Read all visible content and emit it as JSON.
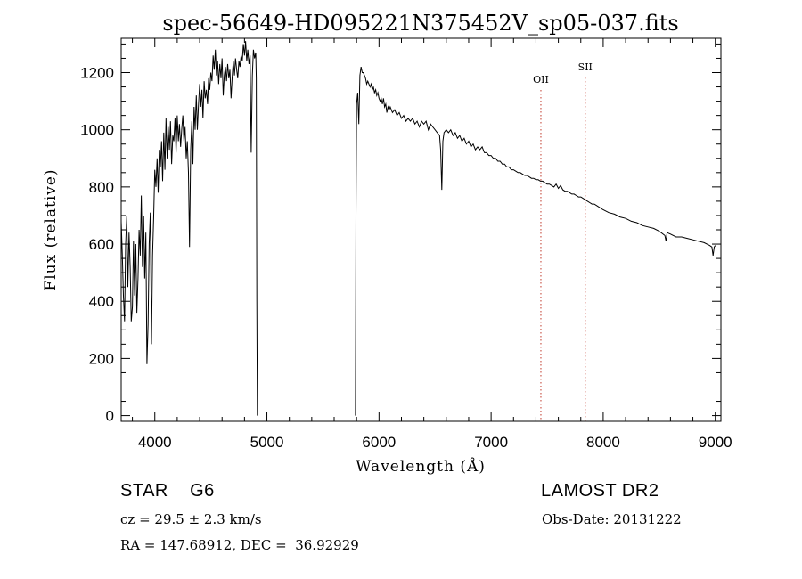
{
  "chart_data": {
    "type": "line",
    "title": "spec-56649-HD095221N375452V_sp05-037.fits",
    "xlabel": "Wavelength (Å)",
    "ylabel": "Flux (relative)",
    "xlim": [
      3700,
      9050
    ],
    "ylim": [
      -20,
      1320
    ],
    "xticks": [
      "4000",
      "5000",
      "6000",
      "7000",
      "8000",
      "9000"
    ],
    "yticks": [
      "0",
      "200",
      "400",
      "600",
      "800",
      "1000",
      "1200"
    ],
    "grid": false,
    "series": [
      {
        "segments": [
          [
            [
              3700,
              680
            ],
            [
              3710,
              560
            ],
            [
              3720,
              420
            ],
            [
              3730,
              330
            ],
            [
              3740,
              600
            ],
            [
              3750,
              700
            ],
            [
              3760,
              450
            ],
            [
              3770,
              640
            ],
            [
              3780,
              520
            ],
            [
              3790,
              330
            ],
            [
              3800,
              380
            ],
            [
              3810,
              610
            ],
            [
              3820,
              420
            ],
            [
              3830,
              600
            ],
            [
              3840,
              360
            ],
            [
              3850,
              480
            ],
            [
              3860,
              650
            ],
            [
              3870,
              560
            ],
            [
              3880,
              770
            ],
            [
              3890,
              520
            ],
            [
              3900,
              700
            ],
            [
              3910,
              480
            ],
            [
              3920,
              640
            ],
            [
              3930,
              180
            ],
            [
              3940,
              320
            ],
            [
              3950,
              600
            ],
            [
              3960,
              710
            ],
            [
              3970,
              250
            ],
            [
              3980,
              560
            ],
            [
              3990,
              700
            ],
            [
              4000,
              860
            ],
            [
              4010,
              800
            ],
            [
              4020,
              900
            ],
            [
              4030,
              780
            ],
            [
              4040,
              930
            ],
            [
              4050,
              870
            ],
            [
              4060,
              960
            ],
            [
              4070,
              820
            ],
            [
              4080,
              990
            ],
            [
              4090,
              860
            ],
            [
              4100,
              1040
            ],
            [
              4110,
              900
            ],
            [
              4120,
              1010
            ],
            [
              4130,
              930
            ],
            [
              4140,
              1030
            ],
            [
              4150,
              880
            ],
            [
              4160,
              980
            ],
            [
              4170,
              960
            ],
            [
              4180,
              1040
            ],
            [
              4190,
              920
            ],
            [
              4200,
              1050
            ],
            [
              4210,
              960
            ],
            [
              4220,
              1020
            ],
            [
              4230,
              940
            ],
            [
              4240,
              1000
            ],
            [
              4250,
              1050
            ],
            [
              4260,
              960
            ],
            [
              4270,
              1010
            ],
            [
              4280,
              900
            ],
            [
              4290,
              960
            ],
            [
              4300,
              850
            ],
            [
              4310,
              590
            ],
            [
              4320,
              930
            ],
            [
              4330,
              1030
            ],
            [
              4340,
              880
            ],
            [
              4350,
              1080
            ],
            [
              4360,
              1000
            ],
            [
              4370,
              1120
            ],
            [
              4380,
              1000
            ],
            [
              4390,
              1090
            ],
            [
              4400,
              1160
            ],
            [
              4410,
              1080
            ],
            [
              4420,
              1140
            ],
            [
              4430,
              1040
            ],
            [
              4440,
              1170
            ],
            [
              4450,
              1110
            ],
            [
              4460,
              1140
            ],
            [
              4470,
              1090
            ],
            [
              4480,
              1180
            ],
            [
              4490,
              1140
            ],
            [
              4500,
              1200
            ],
            [
              4510,
              1170
            ],
            [
              4520,
              1260
            ],
            [
              4530,
              1210
            ],
            [
              4540,
              1280
            ],
            [
              4550,
              1190
            ],
            [
              4560,
              1240
            ],
            [
              4570,
              1160
            ],
            [
              4580,
              1230
            ],
            [
              4590,
              1180
            ],
            [
              4600,
              1250
            ],
            [
              4610,
              1120
            ],
            [
              4620,
              1190
            ],
            [
              4630,
              1220
            ],
            [
              4640,
              1170
            ],
            [
              4650,
              1230
            ],
            [
              4660,
              1180
            ],
            [
              4670,
              1210
            ],
            [
              4680,
              1110
            ],
            [
              4690,
              1180
            ],
            [
              4700,
              1240
            ],
            [
              4710,
              1190
            ],
            [
              4720,
              1250
            ],
            [
              4730,
              1210
            ],
            [
              4740,
              1180
            ],
            [
              4750,
              1240
            ],
            [
              4760,
              1220
            ],
            [
              4770,
              1260
            ],
            [
              4780,
              1240
            ],
            [
              4790,
              1300
            ],
            [
              4800,
              1260
            ],
            [
              4810,
              1310
            ],
            [
              4820,
              1240
            ],
            [
              4830,
              1280
            ],
            [
              4840,
              1230
            ],
            [
              4850,
              1260
            ],
            [
              4860,
              920
            ],
            [
              4870,
              1190
            ],
            [
              4880,
              1280
            ],
            [
              4890,
              1250
            ],
            [
              4900,
              1270
            ],
            [
              4905,
              1180
            ],
            [
              4910,
              400
            ],
            [
              4915,
              0
            ]
          ],
          [
            [
              5790,
              0
            ],
            [
              5795,
              700
            ],
            [
              5800,
              1090
            ],
            [
              5810,
              1130
            ],
            [
              5820,
              1020
            ],
            [
              5830,
              1190
            ],
            [
              5840,
              1220
            ],
            [
              5850,
              1200
            ],
            [
              5860,
              1200
            ],
            [
              5870,
              1190
            ],
            [
              5880,
              1180
            ],
            [
              5890,
              1160
            ],
            [
              5900,
              1170
            ],
            [
              5910,
              1160
            ],
            [
              5920,
              1150
            ],
            [
              5930,
              1160
            ],
            [
              5940,
              1140
            ],
            [
              5950,
              1150
            ],
            [
              5960,
              1130
            ],
            [
              5970,
              1140
            ],
            [
              5980,
              1120
            ],
            [
              5990,
              1130
            ],
            [
              6000,
              1110
            ],
            [
              6010,
              1100
            ],
            [
              6020,
              1110
            ],
            [
              6030,
              1090
            ],
            [
              6040,
              1110
            ],
            [
              6050,
              1080
            ],
            [
              6060,
              1090
            ],
            [
              6070,
              1060
            ],
            [
              6080,
              1080
            ],
            [
              6090,
              1070
            ],
            [
              6100,
              1080
            ],
            [
              6120,
              1060
            ],
            [
              6140,
              1070
            ],
            [
              6160,
              1050
            ],
            [
              6180,
              1060
            ],
            [
              6200,
              1040
            ],
            [
              6220,
              1050
            ],
            [
              6240,
              1030
            ],
            [
              6260,
              1040
            ],
            [
              6280,
              1030
            ],
            [
              6300,
              1040
            ],
            [
              6320,
              1020
            ],
            [
              6340,
              1030
            ],
            [
              6360,
              1010
            ],
            [
              6380,
              1030
            ],
            [
              6400,
              1020
            ],
            [
              6420,
              1030
            ],
            [
              6440,
              1000
            ],
            [
              6460,
              1020
            ],
            [
              6480,
              1010
            ],
            [
              6500,
              1000
            ],
            [
              6520,
              990
            ],
            [
              6540,
              980
            ],
            [
              6550,
              930
            ],
            [
              6560,
              790
            ],
            [
              6570,
              960
            ],
            [
              6580,
              990
            ],
            [
              6600,
              1000
            ],
            [
              6620,
              990
            ],
            [
              6640,
              1000
            ],
            [
              6660,
              980
            ],
            [
              6680,
              990
            ],
            [
              6700,
              970
            ],
            [
              6720,
              980
            ],
            [
              6740,
              960
            ],
            [
              6760,
              970
            ],
            [
              6780,
              950
            ],
            [
              6800,
              960
            ],
            [
              6820,
              940
            ],
            [
              6840,
              950
            ],
            [
              6860,
              930
            ],
            [
              6880,
              940
            ],
            [
              6900,
              930
            ],
            [
              6920,
              940
            ],
            [
              6940,
              920
            ],
            [
              6960,
              920
            ],
            [
              6980,
              910
            ],
            [
              7000,
              910
            ],
            [
              7020,
              900
            ],
            [
              7040,
              900
            ],
            [
              7060,
              890
            ],
            [
              7080,
              890
            ],
            [
              7100,
              880
            ],
            [
              7120,
              880
            ],
            [
              7140,
              870
            ],
            [
              7160,
              870
            ],
            [
              7180,
              860
            ],
            [
              7200,
              860
            ],
            [
              7220,
              855
            ],
            [
              7240,
              850
            ],
            [
              7260,
              850
            ],
            [
              7280,
              845
            ],
            [
              7300,
              840
            ],
            [
              7320,
              840
            ],
            [
              7340,
              835
            ],
            [
              7360,
              830
            ],
            [
              7380,
              830
            ],
            [
              7400,
              825
            ],
            [
              7420,
              825
            ],
            [
              7440,
              820
            ],
            [
              7460,
              820
            ],
            [
              7480,
              815
            ],
            [
              7500,
              810
            ],
            [
              7520,
              810
            ],
            [
              7540,
              805
            ],
            [
              7560,
              800
            ],
            [
              7580,
              810
            ],
            [
              7600,
              795
            ],
            [
              7620,
              805
            ],
            [
              7640,
              790
            ],
            [
              7660,
              785
            ],
            [
              7680,
              785
            ],
            [
              7700,
              780
            ],
            [
              7720,
              775
            ],
            [
              7740,
              775
            ],
            [
              7760,
              770
            ],
            [
              7780,
              765
            ],
            [
              7800,
              765
            ],
            [
              7820,
              760
            ],
            [
              7840,
              755
            ],
            [
              7860,
              750
            ],
            [
              7880,
              745
            ],
            [
              7900,
              740
            ],
            [
              7920,
              740
            ],
            [
              7940,
              735
            ],
            [
              7960,
              730
            ],
            [
              7980,
              725
            ],
            [
              8000,
              720
            ],
            [
              8050,
              710
            ],
            [
              8100,
              705
            ],
            [
              8150,
              695
            ],
            [
              8200,
              690
            ],
            [
              8250,
              680
            ],
            [
              8300,
              675
            ],
            [
              8350,
              665
            ],
            [
              8400,
              660
            ],
            [
              8450,
              655
            ],
            [
              8500,
              645
            ],
            [
              8550,
              630
            ],
            [
              8560,
              610
            ],
            [
              8570,
              640
            ],
            [
              8600,
              635
            ],
            [
              8650,
              625
            ],
            [
              8700,
              625
            ],
            [
              8750,
              620
            ],
            [
              8800,
              615
            ],
            [
              8850,
              610
            ],
            [
              8900,
              605
            ],
            [
              8950,
              595
            ],
            [
              8970,
              590
            ],
            [
              8980,
              560
            ],
            [
              8990,
              590
            ],
            [
              9000,
              595
            ]
          ]
        ]
      }
    ],
    "annotations": [
      {
        "label": "OII",
        "x": 7444
      },
      {
        "label": "SII",
        "x": 7840
      }
    ]
  },
  "info": {
    "class_line": "STAR    G6",
    "survey": "LAMOST DR2",
    "cz": "cz = 29.5 ± 2.3 km/s",
    "obs_date": "Obs-Date: 20131222",
    "coords": "RA = 147.68912, DEC =  36.92929"
  }
}
